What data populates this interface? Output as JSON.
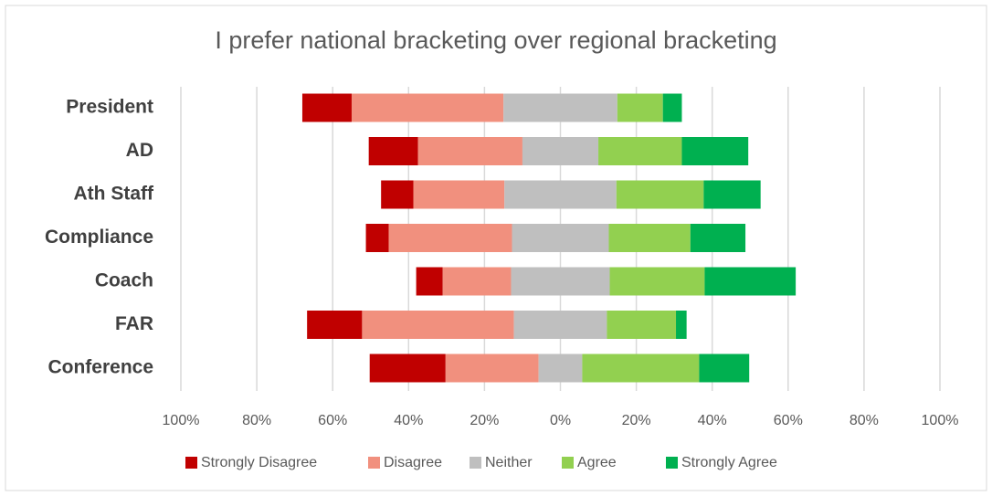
{
  "chart_data": {
    "type": "diverging_bar",
    "title": "I prefer national bracketing over regional bracketing",
    "categories": [
      "President",
      "AD",
      "Ath Staff",
      "Compliance",
      "Coach",
      "FAR",
      "Conference"
    ],
    "series": [
      {
        "name": "Strongly Disagree",
        "color": "#c00000",
        "values": [
          13,
          13,
          8.5,
          6,
          7,
          14.5,
          20
        ]
      },
      {
        "name": "Disagree",
        "color": "#f1907e",
        "values": [
          40,
          27.5,
          24,
          32.5,
          18,
          40,
          24.5
        ]
      },
      {
        "name": "Neither",
        "color": "#bfbfbf",
        "values": [
          30,
          20,
          29.5,
          25.5,
          26,
          24.5,
          11.5
        ]
      },
      {
        "name": "Agree",
        "color": "#92d050",
        "values": [
          12,
          22,
          23,
          21.5,
          25,
          18.2,
          30.8
        ]
      },
      {
        "name": "Strongly Agree",
        "color": "#00b050",
        "values": [
          5,
          17.5,
          15,
          14.5,
          24,
          2.8,
          13.2
        ]
      }
    ],
    "xlim": [
      -100,
      100
    ],
    "xticks": [
      {
        "value": -100,
        "label": "100%"
      },
      {
        "value": -80,
        "label": "80%"
      },
      {
        "value": -60,
        "label": "60%"
      },
      {
        "value": -40,
        "label": "40%"
      },
      {
        "value": -20,
        "label": "20%"
      },
      {
        "value": 0,
        "label": "0%"
      },
      {
        "value": 20,
        "label": "20%"
      },
      {
        "value": 40,
        "label": "40%"
      },
      {
        "value": 60,
        "label": "60%"
      },
      {
        "value": 80,
        "label": "80%"
      },
      {
        "value": 100,
        "label": "100%"
      }
    ],
    "grid": true
  }
}
